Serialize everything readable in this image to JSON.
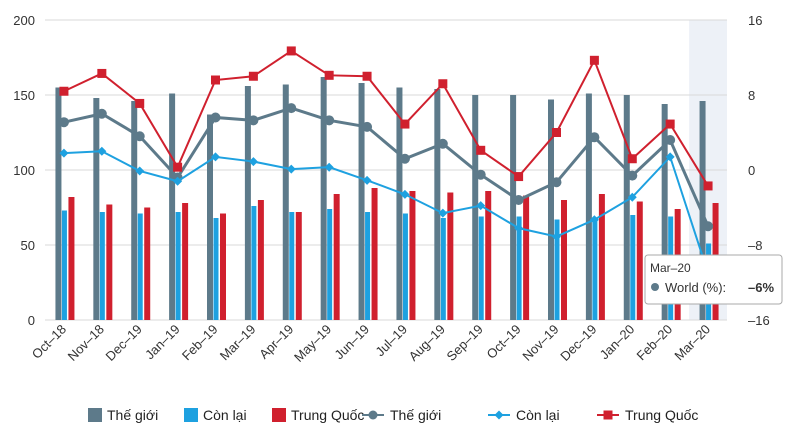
{
  "chart_data": {
    "type": "bar+line",
    "categories": [
      "Oct–18",
      "Nov–18",
      "Dec–19",
      "Jan–19",
      "Feb–19",
      "Mar–19",
      "Apr–19",
      "May–19",
      "Jun–19",
      "Jul–19",
      "Aug–19",
      "Sep–19",
      "Oct–19",
      "Nov–19",
      "Dec–19",
      "Jan–20",
      "Feb–20",
      "Mar–20"
    ],
    "left_axis": {
      "min": 0,
      "max": 200,
      "ticks": [
        "0",
        "50",
        "100",
        "150",
        "200"
      ],
      "tick_values": [
        0,
        50,
        100,
        150,
        200
      ]
    },
    "right_axis": {
      "min": -16,
      "max": 16,
      "ticks": [
        "–16",
        "–8",
        "0",
        "8",
        "16"
      ],
      "tick_values": [
        -16,
        -8,
        0,
        8,
        16
      ]
    },
    "bar_series": [
      {
        "name": "Thế giới",
        "color": "#5d7a8a",
        "values": [
          155,
          148,
          146,
          151,
          137,
          156,
          157,
          162,
          158,
          155,
          154,
          150,
          150,
          147,
          151,
          150,
          144,
          146
        ]
      },
      {
        "name": "Còn lại",
        "color": "#1ea1e0",
        "values": [
          73,
          72,
          71,
          72,
          68,
          76,
          72,
          74,
          72,
          71,
          68,
          69,
          69,
          67,
          68,
          70,
          69,
          51
        ]
      },
      {
        "name": "Trung Quốc",
        "color": "#d0202e",
        "values": [
          82,
          77,
          75,
          78,
          71,
          80,
          72,
          84,
          88,
          86,
          85,
          86,
          83,
          80,
          84,
          79,
          74,
          78
        ]
      }
    ],
    "line_series": [
      {
        "name": "Thế giới",
        "color": "#5d7a8a",
        "marker": "circle",
        "values": [
          5.1,
          6.0,
          3.6,
          -0.8,
          5.6,
          5.3,
          6.6,
          5.3,
          4.6,
          1.2,
          2.8,
          -0.5,
          -3.2,
          -1.3,
          3.5,
          -0.6,
          3.2,
          -6.0
        ]
      },
      {
        "name": "Còn lại",
        "color": "#1ea1e0",
        "marker": "diamond",
        "values": [
          1.8,
          2.0,
          -0.1,
          -1.2,
          1.4,
          0.9,
          0.1,
          0.3,
          -1.1,
          -2.6,
          -4.6,
          -3.8,
          -6.2,
          -7.1,
          -5.3,
          -2.9,
          1.4,
          -11.0
        ]
      },
      {
        "name": "Trung Quốc",
        "color": "#d0202e",
        "marker": "square",
        "values": [
          8.4,
          10.3,
          7.1,
          0.3,
          9.6,
          10.0,
          12.7,
          10.1,
          10.0,
          4.9,
          9.2,
          2.1,
          -0.7,
          4.0,
          11.7,
          1.2,
          4.9,
          -1.7
        ]
      }
    ],
    "highlight_category": "Mar–20",
    "tooltip": {
      "title": "Mar–20",
      "label": "World (%):",
      "value": "–6%"
    },
    "legend_position": "bottom"
  }
}
